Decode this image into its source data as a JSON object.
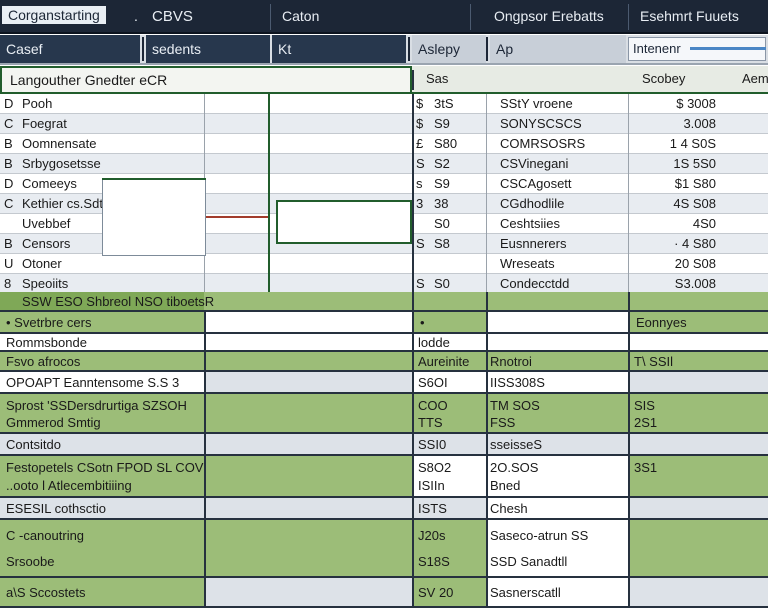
{
  "titlebar": {
    "app": "Corganstarting",
    "dot": ".",
    "menu1": "CBVS",
    "menu2": "Caton",
    "menu3": "Ongpsor Erebatts",
    "menu4": "Esehmrt Fuuets"
  },
  "filterbar": {
    "f1": "Casef",
    "f2": "sedents",
    "f3": "Kt",
    "f4": "Aslepy",
    "f5": "Ap",
    "f6": "Intenenr"
  },
  "group_header": {
    "title": "Langouther Gnedter eCR",
    "col_sas": "Sas",
    "col_scobey": "Scobey",
    "col_aem": "Aem"
  },
  "upper_rows": [
    {
      "mark": "D",
      "name": "Pooh",
      "cur": "$",
      "val": "3tS",
      "code": "SStY vroene",
      "amount": "$ 3008"
    },
    {
      "mark": "C",
      "name": "Foegrat",
      "cur": "$",
      "val": "S9",
      "code": "SONYSCSCS",
      "amount": "3.008"
    },
    {
      "mark": "B",
      "name": "Oomnensate",
      "cur": "£",
      "val": "S80",
      "code": "COMRSOSRS",
      "amount": "1 4 S0S"
    },
    {
      "mark": "B",
      "name": "Srbygosetsse",
      "cur": "S",
      "val": "S2",
      "code": "CSVinegani",
      "amount": "1S 5S0"
    },
    {
      "mark": "D",
      "name": "Comeeys",
      "cur": "s",
      "val": "S9",
      "code": "CSCAgosett",
      "amount": "$1 S80"
    },
    {
      "mark": "C",
      "name": "Kethier   cs.Sdt",
      "cur": "3",
      "val": "38",
      "code": "CGdhodlile",
      "amount": "4S S08"
    },
    {
      "mark": "",
      "name": "Uvebbef",
      "cur": "",
      "val": "S0",
      "code": "Ceshtsiies",
      "amount": "4S0"
    },
    {
      "mark": "B",
      "name": "Censors",
      "cur": "S",
      "val": "S8",
      "code": "Eusnnerers",
      "amount": "· 4 S80"
    },
    {
      "mark": "U",
      "name": "Otoner",
      "cur": "",
      "val": "",
      "code": "Wreseats",
      "amount": "20 S08"
    },
    {
      "mark": "8",
      "name": "Speoiits",
      "cur": "S",
      "val": "S0",
      "code": "Condecctdd",
      "amount": "S3.008"
    }
  ],
  "lower_rows": [
    {
      "c1": "SSW  ESO Shbreol NSO tiboetsR",
      "c2": "",
      "c3": "",
      "c4": ""
    },
    {
      "c1": "• Svetrbre cers",
      "c2": "•",
      "c3": "",
      "c4": "Eonnyes"
    },
    {
      "c1": "Rommsbonde",
      "c2": "lodde",
      "c3": "",
      "c4": ""
    },
    {
      "c1": "Fsvo afrocos",
      "c2": "Aureinite",
      "c3": "Rnotroi",
      "c4": "T\\ SSIl"
    },
    {
      "c1": "OPOAPT Eanntensome S.S 3",
      "c2": "S6OI",
      "c3": "IISS308S",
      "c4": ""
    },
    {
      "c1": "Sprost 'SSDersdrurtiga SZSOH",
      "c1b": "Gmmerod Smtig",
      "c2": "COO",
      "c2b": "TTS",
      "c3": "TM SOS",
      "c3b": "FSS",
      "c4": "SIS",
      "c4b": "2S1"
    },
    {
      "c1": "Contsitdo",
      "c2": "SSI0",
      "c3": "sseisseS",
      "c4": ""
    },
    {
      "c1": "Festopetels CSotn FPOD SL COV",
      "c1b": "..ooto l Atlecembitiiing",
      "c2": "S8O2",
      "c2b": "ISIIn",
      "c3": "2O.SOS",
      "c3b": "Bned",
      "c4": "3S1",
      "c4b": ""
    },
    {
      "c1": "ESESIL cothsctio",
      "c2": "ISTS",
      "c3": "Chesh",
      "c4": ""
    },
    {
      "c1": "C -canoutring",
      "c1b": "Srsoobe",
      "c2": "J20s",
      "c2b": "S18S",
      "c3": "Saseco-atrun SS",
      "c3b": "SSD Sanadtll",
      "c4": "",
      "c4b": ""
    },
    {
      "c1": "a\\S Sccostets",
      "c2": "SV 20",
      "c3": "Sasnerscatll",
      "c4": ""
    }
  ]
}
